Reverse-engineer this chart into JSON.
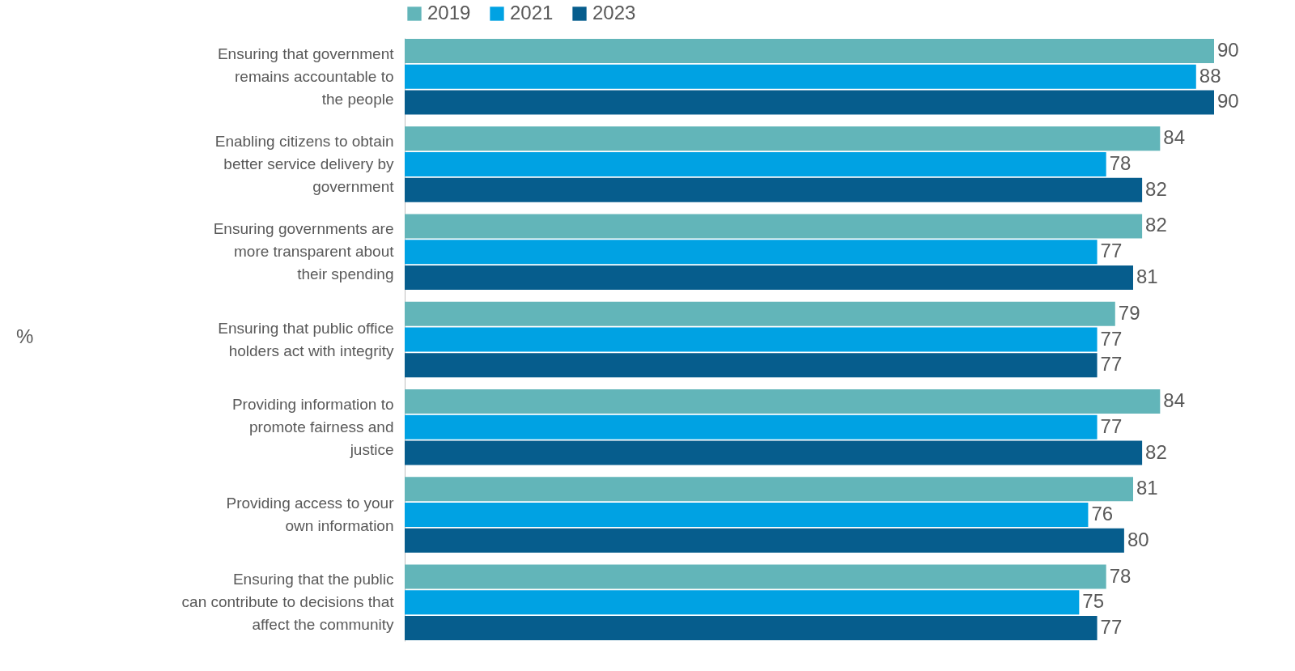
{
  "chart_data": {
    "type": "bar",
    "orientation": "horizontal",
    "annotations": [
      "%"
    ],
    "categories": [
      "Ensuring that government\nremains accountable to\nthe people",
      "Enabling citizens to obtain\nbetter service delivery by\ngovernment",
      "Ensuring governments are\nmore transparent about\ntheir spending",
      "Ensuring that public office\nholders act with integrity",
      "Providing information to\npromote fairness and\njustice",
      "Providing access to your\nown information",
      "Ensuring that the public\ncan contribute to decisions that\naffect the community"
    ],
    "series": [
      {
        "name": "2019",
        "color": "#62b5b9",
        "values": [
          90,
          84,
          82,
          79,
          84,
          81,
          78
        ]
      },
      {
        "name": "2021",
        "color": "#00a2e3",
        "values": [
          88,
          78,
          77,
          77,
          77,
          76,
          75
        ]
      },
      {
        "name": "2023",
        "color": "#065d8d",
        "values": [
          90,
          82,
          81,
          77,
          82,
          80,
          77
        ]
      }
    ],
    "xlim": [
      0,
      90
    ],
    "data_labels": true,
    "legend": "top"
  }
}
